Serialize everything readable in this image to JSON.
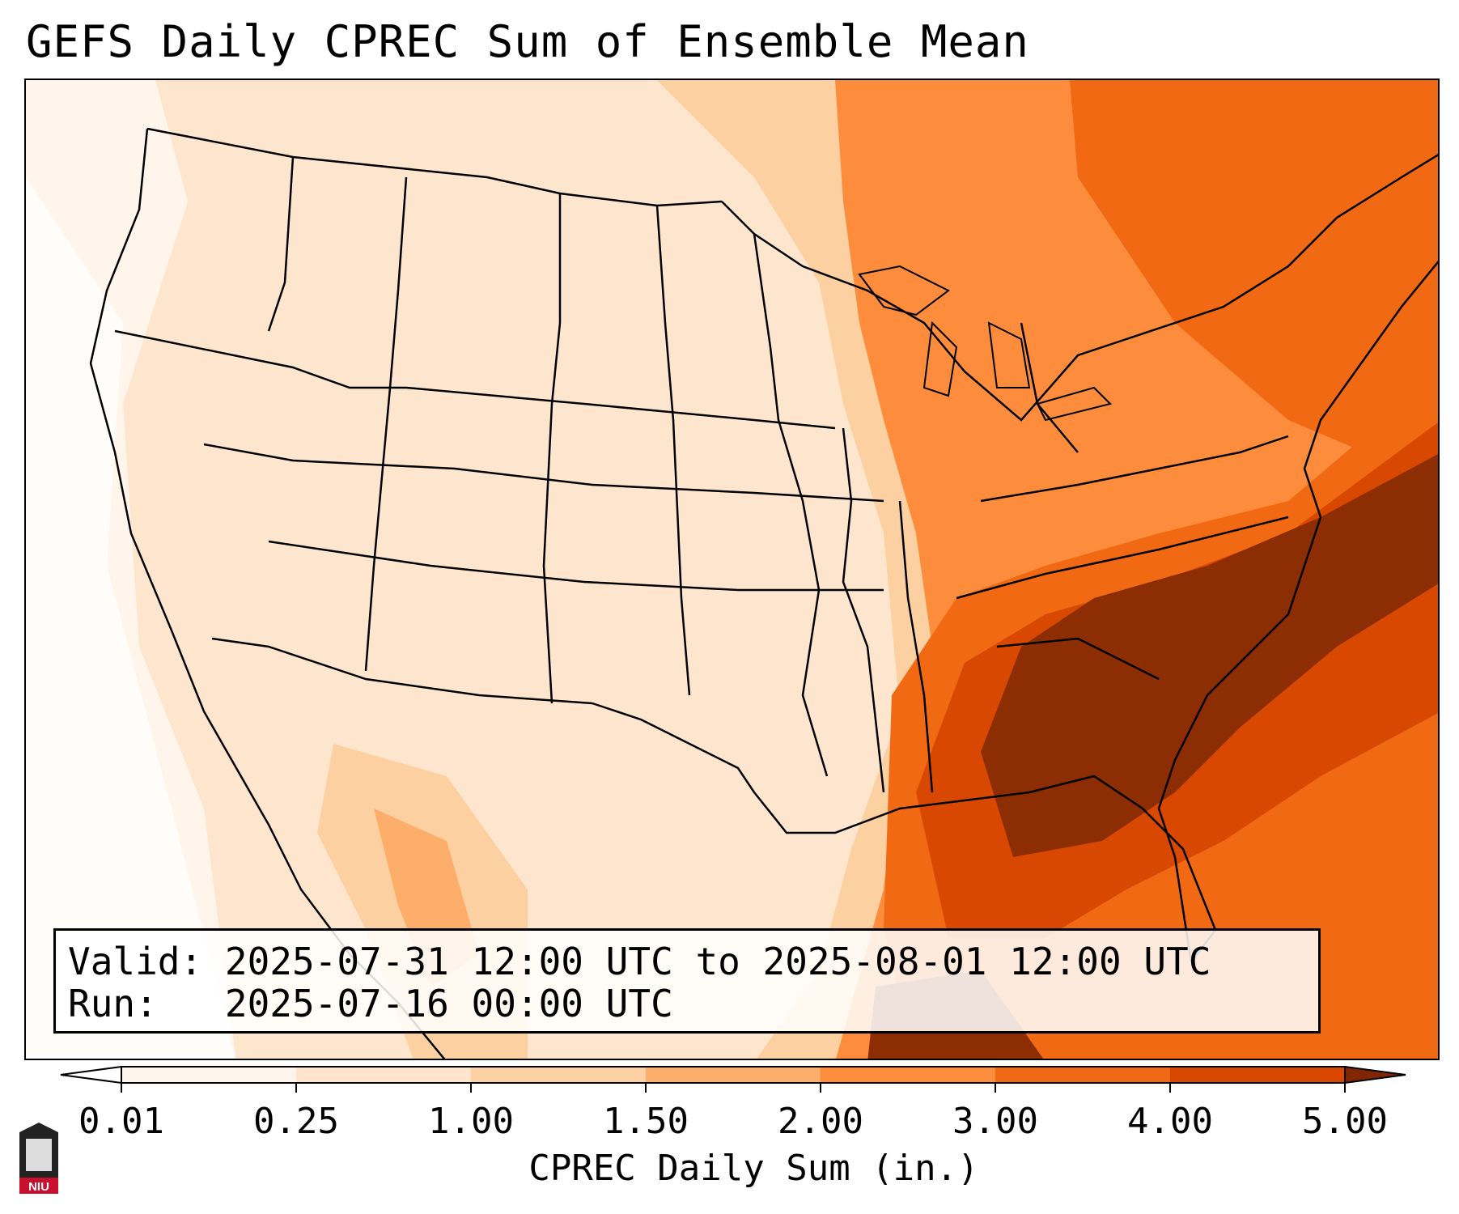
{
  "title": "GEFS Daily CPREC Sum of Ensemble Mean",
  "info": {
    "valid_label": "Valid:",
    "valid_value": "2025-07-31 12:00 UTC to 2025-08-01 12:00 UTC",
    "run_label": "Run:",
    "run_value": "2025-07-16 00:00 UTC"
  },
  "colorbar": {
    "label": "CPREC Daily Sum (in.)",
    "ticks": [
      "0.01",
      "0.25",
      "1.00",
      "1.50",
      "2.00",
      "3.00",
      "4.00",
      "5.00"
    ],
    "colors": [
      "#fff5eb",
      "#fee6ce",
      "#fdd0a2",
      "#fdae6b",
      "#fd8d3c",
      "#f16913",
      "#d94801",
      "#8c2d04"
    ],
    "under_color": "#ffffff",
    "over_color": "#7f2704"
  },
  "logo": {
    "text": "NIU",
    "color": "#c8102e"
  }
}
